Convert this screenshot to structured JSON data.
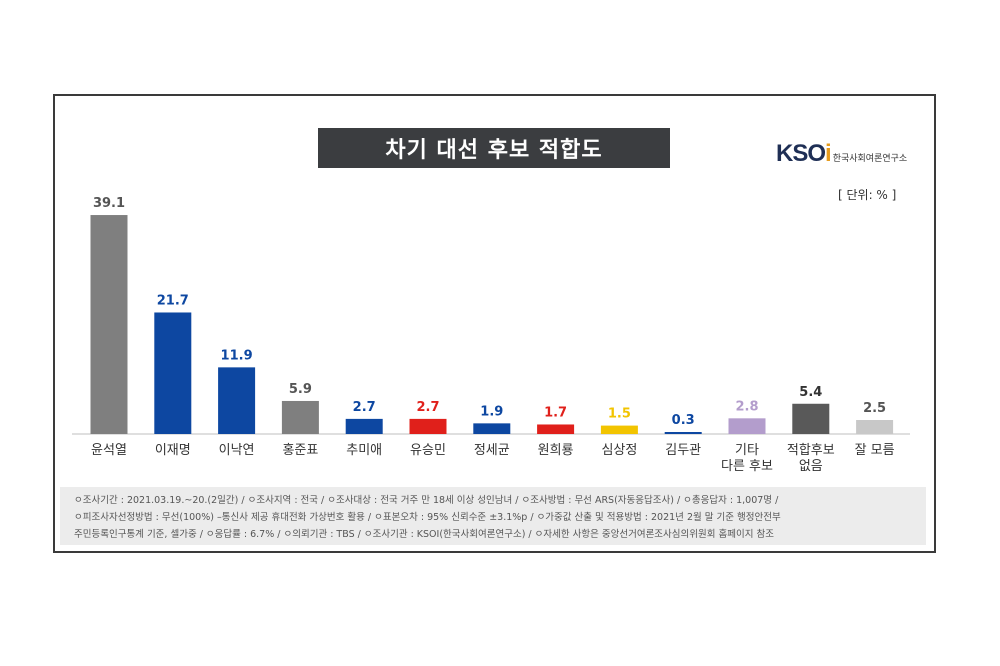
{
  "chart_data": {
    "type": "bar",
    "title": "차기 대선 후보 적합도",
    "unit_label": "[ 단위: % ]",
    "categories": [
      [
        "윤석열"
      ],
      [
        "이재명"
      ],
      [
        "이낙연"
      ],
      [
        "홍준표"
      ],
      [
        "추미애"
      ],
      [
        "유승민"
      ],
      [
        "정세균"
      ],
      [
        "원희룡"
      ],
      [
        "심상정"
      ],
      [
        "김두관"
      ],
      [
        "기타",
        "다른 후보"
      ],
      [
        "적합후보",
        "없음"
      ],
      [
        "잘 모름"
      ]
    ],
    "values": [
      39.1,
      21.7,
      11.9,
      5.9,
      2.7,
      2.7,
      1.9,
      1.7,
      1.5,
      0.3,
      2.8,
      5.4,
      2.5
    ],
    "value_labels": [
      "39.1",
      "21.7",
      "11.9",
      "5.9",
      "2.7",
      "2.7",
      "1.9",
      "1.7",
      "1.5",
      "0.3",
      "2.8",
      "5.4",
      "2.5"
    ],
    "colors": [
      "#7f7f7f",
      "#0d47a1",
      "#0d47a1",
      "#7f7f7f",
      "#0d47a1",
      "#e0201b",
      "#0d47a1",
      "#e0201b",
      "#f2c400",
      "#0d47a1",
      "#b39dcc",
      "#595959",
      "#c8c8c8"
    ],
    "label_colors": [
      "#555555",
      "#0d47a1",
      "#0d47a1",
      "#555555",
      "#0d47a1",
      "#e0201b",
      "#0d47a1",
      "#e0201b",
      "#f2c400",
      "#0d47a1",
      "#b39dcc",
      "#333333",
      "#555555"
    ],
    "ylim": [
      0,
      40
    ]
  },
  "logo": {
    "mark_main": "KSO",
    "mark_accent": "i",
    "org_name": "한국사회여론연구소"
  },
  "footnote": {
    "line1": "ㅇ조사기간 : 2021.03.19.~20.(2일간) / ㅇ조사지역 : 전국 / ㅇ조사대상 : 전국 거주 만 18세 이상 성인남녀 / ㅇ조사방법 : 무선 ARS(자동응답조사) / ㅇ총응답자 : 1,007명 /",
    "line2": "ㅇ피조사자선정방법 : 무선(100%) –통신사 제공 휴대전화 가상번호 활용 / ㅇ표본오차 : 95% 신뢰수준 ±3.1%p / ㅇ가중값 산출 및 적용방법 : 2021년 2월 말 기준 행정안전부",
    "line3": "주민등록인구통계 기준, 셀가중 / ㅇ응답률 : 6.7% / ㅇ의뢰기관 : TBS / ㅇ조사기관 : KSOI(한국사회여론연구소) / ㅇ자세한 사항은 중앙선거여론조사심의위원회 홈페이지 참조"
  }
}
